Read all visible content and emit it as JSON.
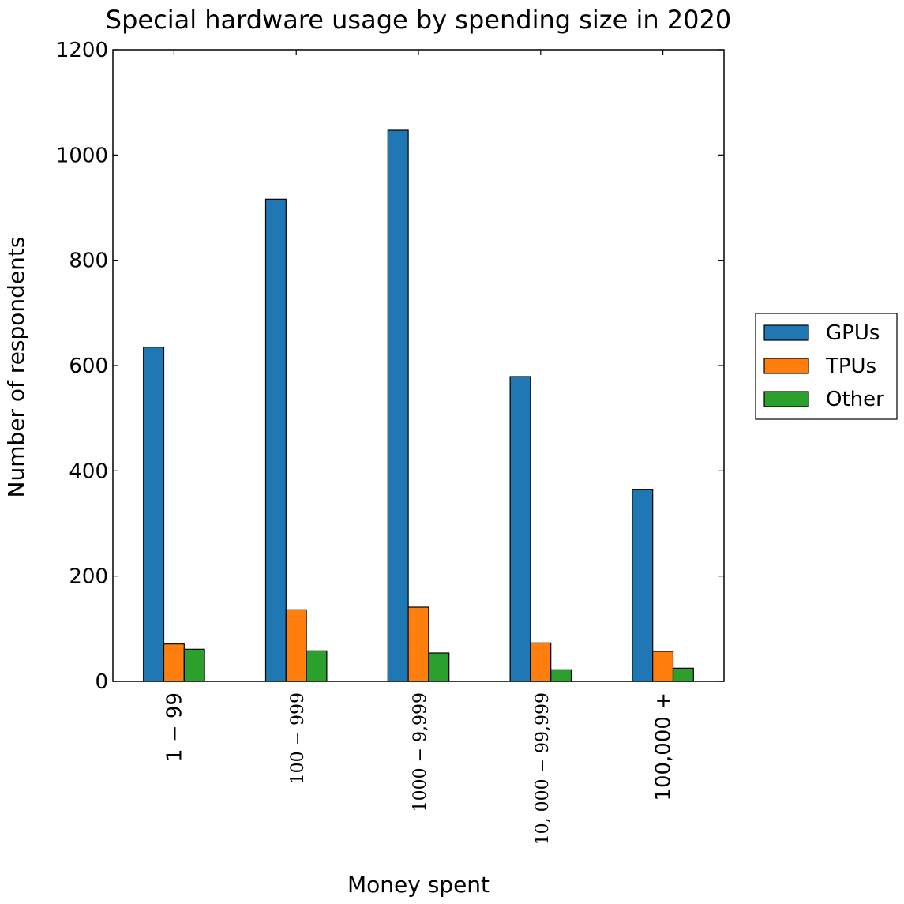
{
  "chart_data": {
    "type": "bar",
    "title": "Special hardware usage by spending size in 2020",
    "xlabel": "Money spent",
    "ylabel": "Number of respondents",
    "ylim": [
      0,
      1200
    ],
    "yticks": [
      "0",
      "200",
      "400",
      "600",
      "800",
      "1000",
      "1200"
    ],
    "categories": [
      "$1-$99",
      "$100-$999",
      "$1000-$9,999",
      "$10,000-$99,999",
      "$100,000 +"
    ],
    "category_labels": [
      "1 − 99",
      "100 − 999",
      "1000 − 9,999",
      "10, 000 − 99,999",
      "100,000 +"
    ],
    "series": [
      {
        "name": "GPUs",
        "color": "#1f77b4",
        "values": [
          635,
          916,
          1047,
          579,
          365
        ]
      },
      {
        "name": "TPUs",
        "color": "#ff7f0e",
        "values": [
          71,
          136,
          141,
          73,
          57
        ]
      },
      {
        "name": "Other",
        "color": "#2ca02c",
        "values": [
          61,
          58,
          54,
          22,
          25
        ]
      }
    ],
    "grid": false,
    "legend_position": "right"
  }
}
